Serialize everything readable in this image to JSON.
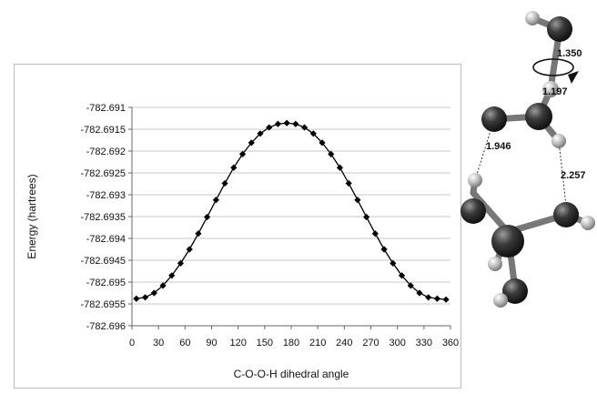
{
  "chart_data": {
    "type": "line",
    "title": "",
    "xlabel": "C-O-O-H dihedral angle",
    "ylabel": "Energy (hartrees)",
    "xlim": [
      0,
      360
    ],
    "ylim": [
      -782.696,
      -782.691
    ],
    "x_ticks": [
      0,
      30,
      60,
      90,
      120,
      150,
      180,
      210,
      240,
      270,
      300,
      330,
      360
    ],
    "y_ticks": [
      -782.691,
      -782.6915,
      -782.692,
      -782.6925,
      -782.693,
      -782.6935,
      -782.694,
      -782.6945,
      -782.695,
      -782.6955,
      -782.696
    ],
    "x_tick_labels": [
      "0",
      "30",
      "60",
      "90",
      "120",
      "150",
      "180",
      "210",
      "240",
      "270",
      "300",
      "330",
      "360"
    ],
    "y_tick_labels": [
      "-782.691",
      "-782.6915",
      "-782.692",
      "-782.6925",
      "-782.693",
      "-782.6935",
      "-782.694",
      "-782.6945",
      "-782.695",
      "-782.6955",
      "-782.696"
    ],
    "grid": "horizontal",
    "legend": "none",
    "marker": "diamond",
    "color": "#000000",
    "series": [
      {
        "x": [
          5,
          15,
          25,
          35,
          45,
          55,
          65,
          75,
          85,
          95,
          105,
          115,
          125,
          135,
          145,
          155,
          165,
          175,
          185,
          195,
          205,
          215,
          225,
          235,
          245,
          255,
          265,
          275,
          285,
          295,
          305,
          315,
          325,
          335,
          345,
          355
        ],
        "values": [
          -782.69538,
          -782.69535,
          -782.69525,
          -782.69508,
          -782.69485,
          -782.69457,
          -782.69425,
          -782.69389,
          -782.69351,
          -782.69312,
          -782.69274,
          -782.69238,
          -782.69207,
          -782.69181,
          -782.6916,
          -782.69146,
          -782.69138,
          -782.69136,
          -782.69138,
          -782.69146,
          -782.6916,
          -782.69181,
          -782.69207,
          -782.69238,
          -782.69274,
          -782.69312,
          -782.69351,
          -782.69389,
          -782.69425,
          -782.69457,
          -782.69485,
          -782.69508,
          -782.69525,
          -782.69535,
          -782.69538,
          -782.6954
        ]
      }
    ]
  },
  "molecule": {
    "bond_labels": [
      "1.350",
      "1.197",
      "1.946",
      "2.257"
    ]
  }
}
